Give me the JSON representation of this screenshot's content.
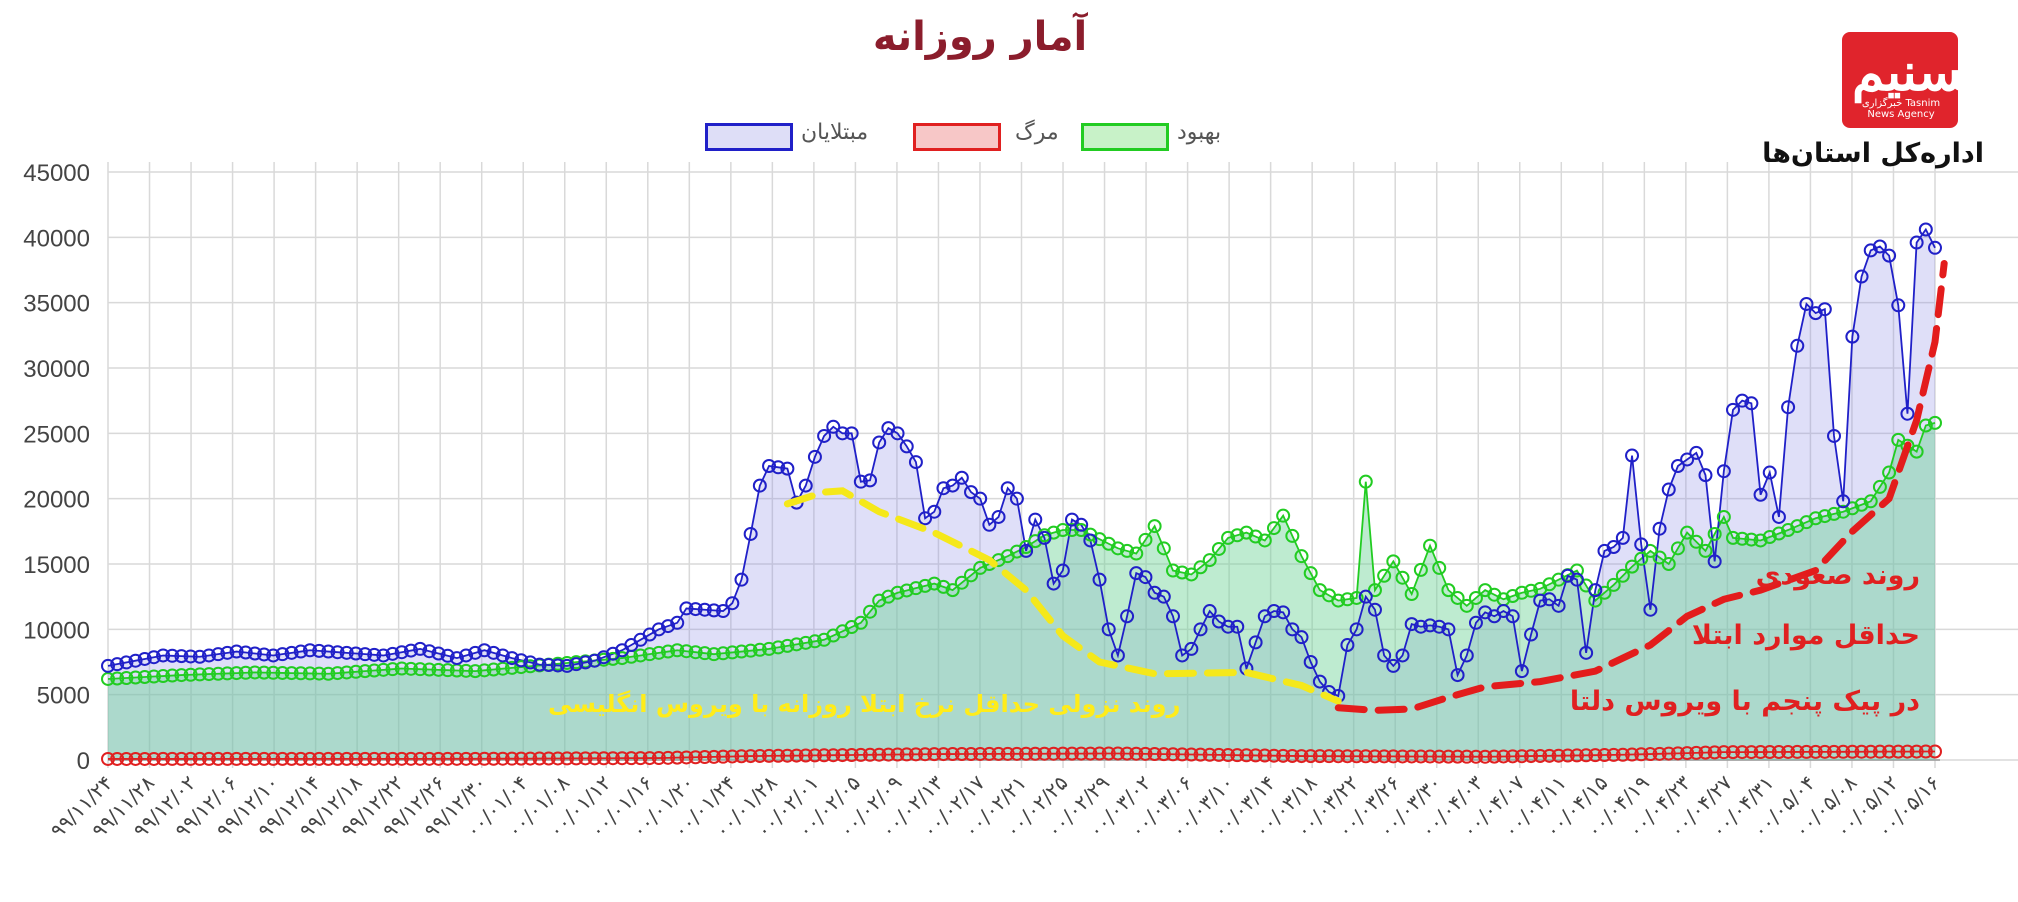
{
  "header": {
    "title": "آمار روزانه",
    "org_label": "اداره‌کل استان‌ها",
    "logo_text": "تسنیم",
    "logo_subtext": "خبرگزاری Tasnim News Agency"
  },
  "colors": {
    "infected": "#2020c8",
    "death": "#e02020",
    "recovered": "#22cc22",
    "trend_red": "#e31c1c",
    "trend_yellow": "#f5e81a",
    "title": "#8b1d2c"
  },
  "annotations": {
    "red_line1": "روند صعودی",
    "red_line2": "حداقل موارد ابتلا",
    "red_line3": "در پیک پنجم با ویروس دلتا",
    "yellow": "روند نزولی حداقل نرخ ابتلا روزانه با ویروس انگلیسی"
  },
  "chart_data": {
    "type": "line",
    "title": "آمار روزانه",
    "ylim": [
      0,
      45000
    ],
    "yticks": [
      0,
      5000,
      10000,
      15000,
      20000,
      25000,
      30000,
      35000,
      40000,
      45000
    ],
    "grid": true,
    "legend_position": "top-center",
    "x_tick_labels": [
      "۹۹/۱۱/۲۴",
      "۹۹/۱۱/۲۸",
      "۹۹/۱۲/۰۲",
      "۹۹/۱۲/۰۶",
      "۹۹/۱۲/۱۰",
      "۹۹/۱۲/۱۴",
      "۹۹/۱۲/۱۸",
      "۹۹/۱۲/۲۲",
      "۹۹/۱۲/۲۶",
      "۹۹/۱۲/۳۰",
      "۰۰/۰۱/۰۴",
      "۰۰/۰۱/۰۸",
      "۰۰/۰۱/۱۲",
      "۰۰/۰۱/۱۶",
      "۰۰/۰۱/۲۰",
      "۰۰/۰۱/۲۴",
      "۰۰/۰۱/۲۸",
      "۰۰/۰۲/۰۱",
      "۰۰/۰۲/۰۵",
      "۰۰/۰۲/۰۹",
      "۰۰/۰۲/۱۳",
      "۰۰/۰۲/۱۷",
      "۰۰/۰۲/۲۱",
      "۰۰/۰۲/۲۵",
      "۰۰/۰۲/۲۹",
      "۰۰/۰۳/۰۲",
      "۰۰/۰۳/۰۶",
      "۰۰/۰۳/۱۰",
      "۰۰/۰۳/۱۴",
      "۰۰/۰۳/۱۸",
      "۰۰/۰۳/۲۲",
      "۰۰/۰۳/۲۶",
      "۰۰/۰۳/۳۰",
      "۰۰/۰۴/۰۳",
      "۰۰/۰۴/۰۷",
      "۰۰/۰۴/۱۱",
      "۰۰/۰۴/۱۵",
      "۰۰/۰۴/۱۹",
      "۰۰/۰۴/۲۳",
      "۰۰/۰۴/۲۷",
      "۰۰/۰۴/۳۱",
      "۰۰/۰۵/۰۴",
      "۰۰/۰۵/۰۸",
      "۰۰/۰۵/۱۲",
      "۰۰/۰۵/۱۶"
    ],
    "n_points": 177,
    "series": [
      {
        "name": "مبتلایان",
        "color": "#2020c8",
        "keypoints": [
          [
            0,
            7200
          ],
          [
            3,
            7600
          ],
          [
            6,
            8000
          ],
          [
            10,
            7900
          ],
          [
            14,
            8300
          ],
          [
            18,
            8000
          ],
          [
            22,
            8400
          ],
          [
            26,
            8200
          ],
          [
            30,
            8000
          ],
          [
            34,
            8500
          ],
          [
            38,
            7800
          ],
          [
            41,
            8400
          ],
          [
            44,
            7800
          ],
          [
            47,
            7300
          ],
          [
            50,
            7200
          ],
          [
            53,
            7600
          ],
          [
            56,
            8400
          ],
          [
            58,
            9200
          ],
          [
            60,
            10000
          ],
          [
            62,
            10500
          ],
          [
            63,
            11600
          ],
          [
            65,
            11500
          ],
          [
            67,
            11400
          ],
          [
            68,
            12000
          ],
          [
            69,
            13800
          ],
          [
            70,
            17300
          ],
          [
            71,
            21000
          ],
          [
            72,
            22500
          ],
          [
            73,
            22400
          ],
          [
            74,
            22300
          ],
          [
            75,
            19700
          ],
          [
            76,
            21000
          ],
          [
            77,
            23200
          ],
          [
            78,
            24800
          ],
          [
            79,
            25500
          ],
          [
            80,
            25000
          ],
          [
            81,
            25000
          ],
          [
            82,
            21300
          ],
          [
            83,
            21400
          ],
          [
            84,
            24300
          ],
          [
            85,
            25400
          ],
          [
            86,
            25000
          ],
          [
            87,
            24000
          ],
          [
            88,
            22800
          ],
          [
            89,
            18500
          ],
          [
            90,
            19000
          ],
          [
            91,
            20800
          ],
          [
            92,
            21000
          ],
          [
            93,
            21600
          ],
          [
            94,
            20500
          ],
          [
            95,
            20000
          ],
          [
            96,
            18000
          ],
          [
            97,
            18600
          ],
          [
            98,
            20800
          ],
          [
            99,
            20000
          ],
          [
            100,
            16000
          ],
          [
            101,
            18400
          ],
          [
            102,
            17000
          ],
          [
            103,
            13500
          ],
          [
            104,
            14500
          ],
          [
            105,
            18400
          ],
          [
            106,
            18000
          ],
          [
            107,
            16800
          ],
          [
            108,
            13800
          ],
          [
            109,
            10000
          ],
          [
            110,
            8000
          ],
          [
            111,
            11000
          ],
          [
            112,
            14300
          ],
          [
            113,
            14000
          ],
          [
            114,
            12800
          ],
          [
            115,
            12500
          ],
          [
            116,
            11000
          ],
          [
            117,
            8000
          ],
          [
            118,
            8500
          ],
          [
            119,
            10000
          ],
          [
            120,
            11400
          ],
          [
            121,
            10600
          ],
          [
            122,
            10200
          ],
          [
            123,
            10200
          ],
          [
            124,
            7000
          ],
          [
            125,
            9000
          ],
          [
            126,
            11000
          ],
          [
            127,
            11400
          ],
          [
            128,
            11300
          ],
          [
            129,
            10000
          ],
          [
            130,
            9400
          ],
          [
            131,
            7500
          ],
          [
            132,
            6000
          ],
          [
            133,
            5200
          ],
          [
            134,
            4900
          ],
          [
            135,
            8800
          ],
          [
            136,
            10000
          ],
          [
            137,
            12500
          ],
          [
            138,
            11500
          ],
          [
            139,
            8000
          ],
          [
            140,
            7200
          ],
          [
            141,
            8000
          ],
          [
            142,
            10400
          ],
          [
            143,
            10200
          ],
          [
            144,
            10300
          ],
          [
            145,
            10200
          ],
          [
            146,
            10000
          ],
          [
            147,
            6500
          ],
          [
            148,
            8000
          ],
          [
            149,
            10500
          ],
          [
            150,
            11300
          ],
          [
            151,
            11000
          ],
          [
            152,
            11400
          ],
          [
            153,
            11000
          ],
          [
            154,
            6800
          ],
          [
            155,
            9600
          ],
          [
            156,
            12200
          ],
          [
            157,
            12300
          ],
          [
            158,
            11800
          ],
          [
            159,
            14100
          ],
          [
            160,
            13800
          ],
          [
            161,
            8200
          ],
          [
            162,
            13000
          ],
          [
            163,
            16000
          ],
          [
            164,
            16300
          ],
          [
            165,
            17000
          ],
          [
            166,
            23300
          ],
          [
            167,
            16500
          ],
          [
            168,
            11500
          ],
          [
            169,
            17700
          ],
          [
            170,
            20700
          ],
          [
            171,
            22500
          ],
          [
            172,
            23000
          ],
          [
            173,
            23500
          ],
          [
            174,
            21800
          ],
          [
            175,
            15200
          ],
          [
            176,
            22100
          ]
        ]
      },
      {
        "name": "مرگ",
        "color": "#e02020",
        "keypoints": [
          [
            0,
            80
          ],
          [
            40,
            90
          ],
          [
            60,
            150
          ],
          [
            70,
            300
          ],
          [
            90,
            450
          ],
          [
            110,
            500
          ],
          [
            130,
            300
          ],
          [
            150,
            250
          ],
          [
            165,
            400
          ],
          [
            176,
            600
          ]
        ]
      },
      {
        "name": "بهبود",
        "color": "#22cc22",
        "keypoints": [
          [
            0,
            6200
          ],
          [
            8,
            6500
          ],
          [
            16,
            6700
          ],
          [
            24,
            6600
          ],
          [
            32,
            7000
          ],
          [
            40,
            6800
          ],
          [
            48,
            7300
          ],
          [
            56,
            7800
          ],
          [
            62,
            8400
          ],
          [
            66,
            8100
          ],
          [
            72,
            8500
          ],
          [
            78,
            9200
          ],
          [
            82,
            10500
          ],
          [
            84,
            12200
          ],
          [
            86,
            12800
          ],
          [
            90,
            13500
          ],
          [
            92,
            13000
          ],
          [
            95,
            14700
          ],
          [
            98,
            15600
          ],
          [
            100,
            16300
          ],
          [
            102,
            17200
          ],
          [
            104,
            17600
          ],
          [
            106,
            17600
          ],
          [
            110,
            16200
          ],
          [
            112,
            15800
          ],
          [
            114,
            17900
          ],
          [
            116,
            14500
          ],
          [
            118,
            14200
          ],
          [
            120,
            15300
          ],
          [
            122,
            17000
          ],
          [
            124,
            17400
          ],
          [
            126,
            16800
          ],
          [
            128,
            18700
          ],
          [
            130,
            15600
          ],
          [
            132,
            13000
          ],
          [
            134,
            12200
          ],
          [
            136,
            12400
          ],
          [
            137,
            21300
          ],
          [
            138,
            13000
          ],
          [
            140,
            15200
          ],
          [
            142,
            12700
          ],
          [
            144,
            16400
          ],
          [
            146,
            13000
          ],
          [
            148,
            11800
          ],
          [
            150,
            13000
          ],
          [
            152,
            12300
          ],
          [
            154,
            12800
          ],
          [
            156,
            13100
          ],
          [
            158,
            13800
          ],
          [
            160,
            14500
          ],
          [
            162,
            12200
          ],
          [
            164,
            13400
          ],
          [
            166,
            14800
          ],
          [
            168,
            16000
          ],
          [
            170,
            15000
          ],
          [
            172,
            17400
          ],
          [
            174,
            16000
          ],
          [
            176,
            18600
          ]
        ]
      }
    ],
    "extension": {
      "infected_tail": [
        [
          177,
          26800
        ],
        [
          178,
          27500
        ],
        [
          179,
          27300
        ],
        [
          180,
          20300
        ],
        [
          181,
          22000
        ],
        [
          182,
          18600
        ],
        [
          183,
          27000
        ],
        [
          184,
          31700
        ],
        [
          185,
          34900
        ],
        [
          186,
          34200
        ],
        [
          187,
          34500
        ],
        [
          188,
          24800
        ],
        [
          189,
          19800
        ],
        [
          190,
          32400
        ],
        [
          191,
          37000
        ],
        [
          192,
          39000
        ],
        [
          193,
          39300
        ],
        [
          194,
          38600
        ],
        [
          195,
          34800
        ],
        [
          196,
          26500
        ],
        [
          197,
          39600
        ],
        [
          198,
          40600
        ],
        [
          199,
          39200
        ]
      ],
      "recovered_tail": [
        [
          177,
          17000
        ],
        [
          180,
          16800
        ],
        [
          183,
          17600
        ],
        [
          186,
          18500
        ],
        [
          189,
          19000
        ],
        [
          192,
          19800
        ],
        [
          194,
          22000
        ],
        [
          195,
          24500
        ],
        [
          197,
          23600
        ],
        [
          198,
          25600
        ],
        [
          199,
          25800
        ]
      ]
    },
    "trend_lines": [
      {
        "name": "yellow",
        "points": [
          [
            74,
            19600
          ],
          [
            78,
            20500
          ],
          [
            80,
            20600
          ],
          [
            84,
            19000
          ],
          [
            90,
            17400
          ],
          [
            96,
            15300
          ],
          [
            100,
            13000
          ],
          [
            104,
            9500
          ],
          [
            108,
            7500
          ],
          [
            114,
            6600
          ],
          [
            124,
            6700
          ],
          [
            130,
            5700
          ],
          [
            134,
            4500
          ]
        ]
      },
      {
        "name": "red",
        "points": [
          [
            134,
            4000
          ],
          [
            138,
            3800
          ],
          [
            142,
            3900
          ],
          [
            146,
            4800
          ],
          [
            150,
            5600
          ],
          [
            156,
            6000
          ],
          [
            162,
            6800
          ],
          [
            168,
            8800
          ],
          [
            172,
            11000
          ],
          [
            176,
            12300
          ],
          [
            180,
            13000
          ],
          [
            186,
            14500
          ],
          [
            190,
            17500
          ],
          [
            194,
            20000
          ],
          [
            197,
            26000
          ],
          [
            199,
            32000
          ],
          [
            200,
            38000
          ]
        ]
      }
    ]
  }
}
